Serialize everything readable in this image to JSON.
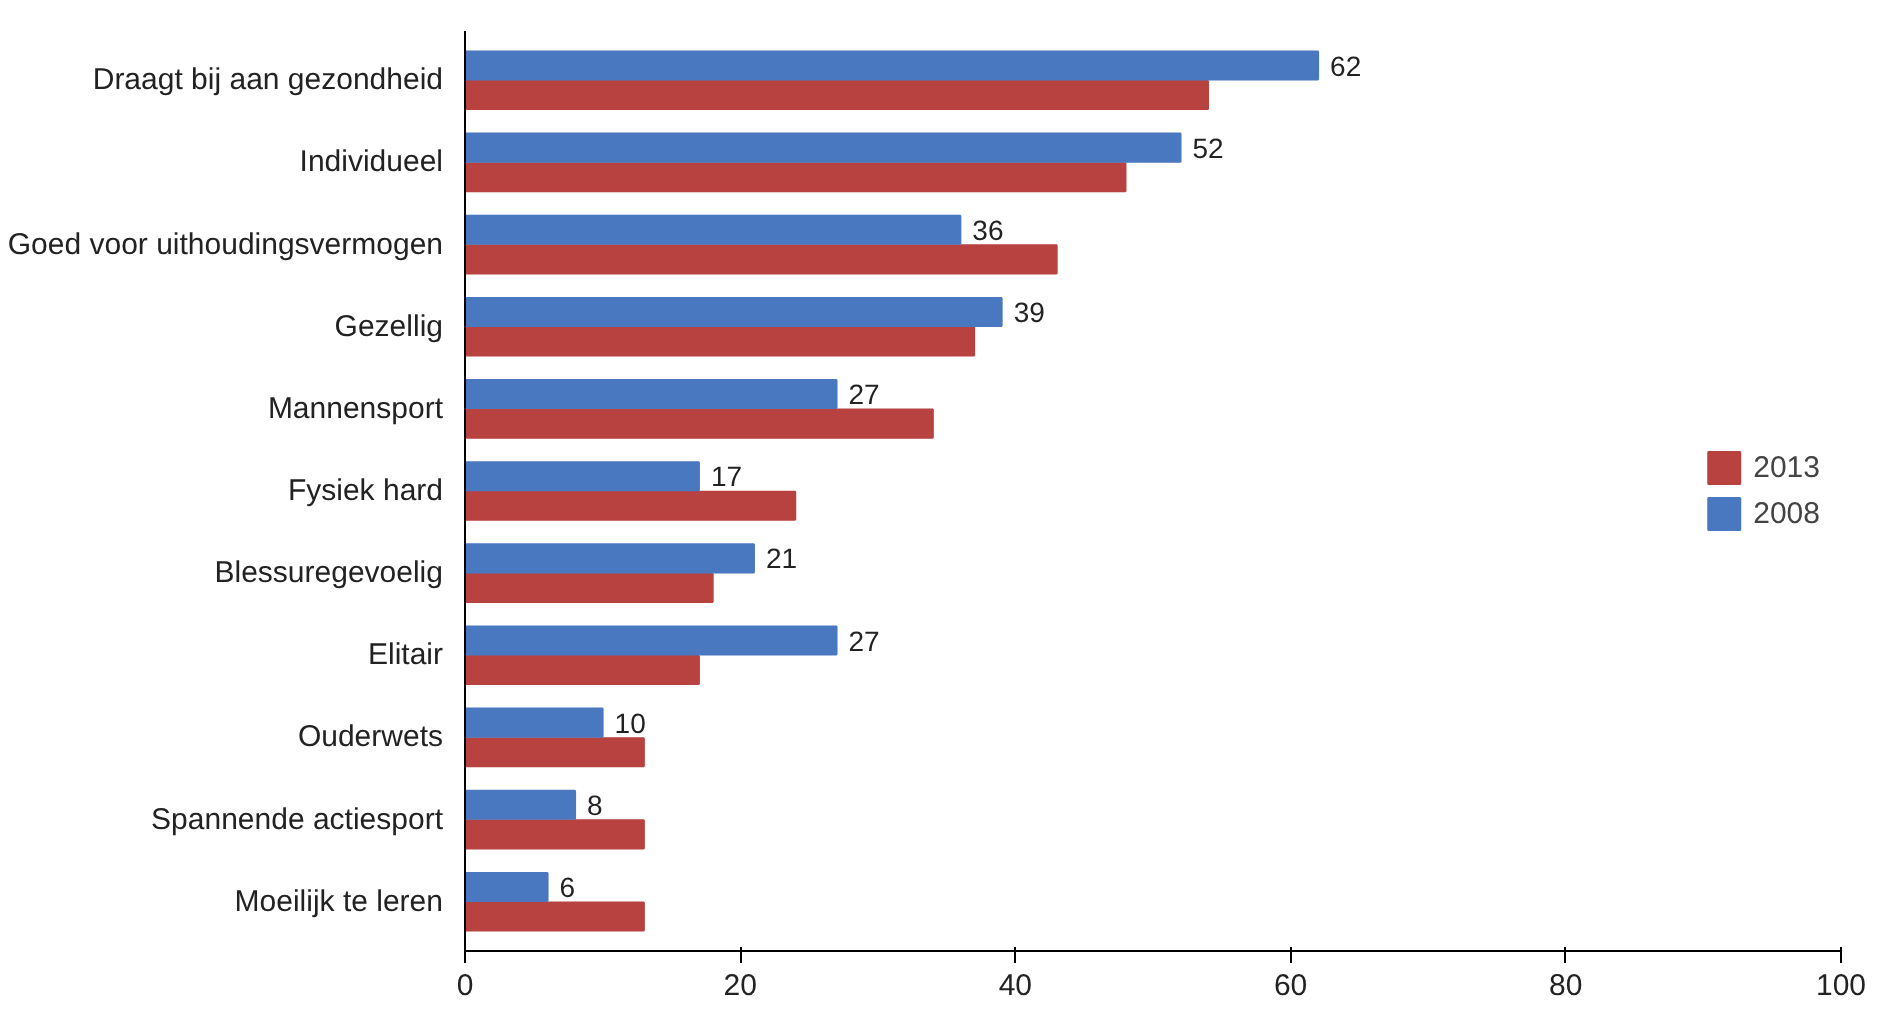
{
  "chart_data": {
    "type": "bar",
    "orientation": "horizontal",
    "categories": [
      "Draagt bij aan gezondheid",
      "Individueel",
      "Goed voor uithoudingsvermogen",
      "Gezellig",
      "Mannensport",
      "Fysiek hard",
      "Blessuregevoelig",
      "Elitair",
      "Ouderwets",
      "Spannende actiesport",
      "Moeilijk te leren"
    ],
    "series": [
      {
        "name": "2013",
        "color": "#b84240",
        "values": [
          54,
          48,
          43,
          37,
          34,
          24,
          18,
          17,
          13,
          13,
          13
        ]
      },
      {
        "name": "2008",
        "color": "#4a78c0",
        "values": [
          62,
          52,
          36,
          39,
          27,
          17,
          21,
          27,
          10,
          8,
          6
        ],
        "value_labels": [
          "62",
          "52",
          "36",
          "39",
          "27",
          "17",
          "21",
          "27",
          "10",
          "8",
          "6"
        ]
      }
    ],
    "xlim": [
      0,
      100
    ],
    "xticks": [
      0,
      20,
      40,
      60,
      80,
      100
    ],
    "grid": false,
    "legend": "right"
  }
}
